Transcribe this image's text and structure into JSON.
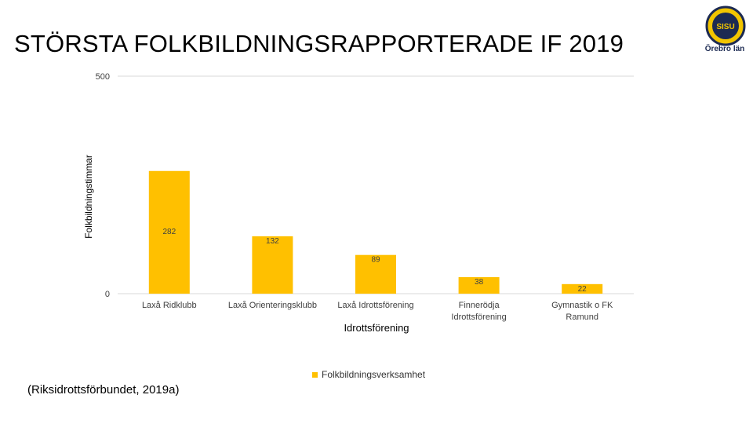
{
  "page": {
    "title": "STÖRSTA FOLKBILDNINGSRAPPORTERADE IF 2019",
    "logo_text": "Örebro län",
    "logo_letters": "SISU",
    "source": "(Riksidrottsförbundet, 2019a)"
  },
  "colors": {
    "bar": "#FFC000",
    "grid": "#D9D9D9",
    "logo_navy": "#1C2A52",
    "logo_gold": "#F2C500"
  },
  "chart_data": {
    "type": "bar",
    "categories": [
      [
        "Laxå Ridklubb"
      ],
      [
        "Laxå Orienteringsklubb"
      ],
      [
        "Laxå Idrottsförening"
      ],
      [
        "Finnerödja",
        "Idrottsförening"
      ],
      [
        "Gymnastik o FK",
        "Ramund"
      ]
    ],
    "series": [
      {
        "name": "Folkbildningsverksamhet",
        "values": [
          282,
          132,
          89,
          38,
          22
        ]
      }
    ],
    "xlabel": "Idrottsförening",
    "ylabel": "Folkbildningstimmar",
    "ylim": [
      0,
      500
    ],
    "yticks": [
      0,
      500
    ],
    "grid": true,
    "legend_position": "bottom"
  }
}
